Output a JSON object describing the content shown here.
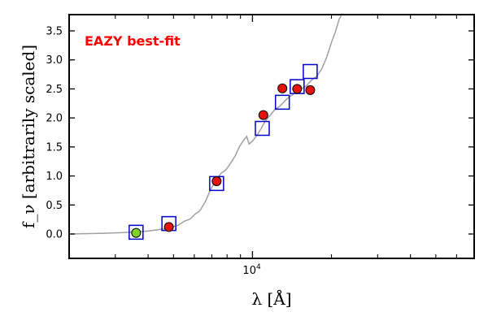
{
  "chart_data": {
    "type": "scatter",
    "title": "",
    "xlabel": "λ [Å]",
    "ylabel": "f_ν [arbitrarily scaled]",
    "x_scale": "log",
    "xlim": [
      2000,
      70000
    ],
    "ylim": [
      -0.42,
      3.78
    ],
    "y_ticks": [
      0.0,
      0.5,
      1.0,
      1.5,
      2.0,
      2.5,
      3.0,
      3.5
    ],
    "y_tick_labels": [
      "0.0",
      "0.5",
      "1.0",
      "1.5",
      "2.0",
      "2.5",
      "3.0",
      "3.5"
    ],
    "x_major_tick": {
      "value": 10000,
      "label_base": "10",
      "label_exp": "4"
    },
    "x_minor_ticks": [
      3000,
      4000,
      5000,
      6000,
      7000,
      8000,
      9000,
      20000,
      30000,
      40000,
      50000,
      60000
    ],
    "annotation": {
      "text": "EAZY best-fit",
      "color": "#ff0000"
    },
    "colors": {
      "template": "#a0a0a0",
      "model_box": "#0000cc",
      "observed_fill": "#e8120c",
      "upper_fill": "#7fd321",
      "frame": "#000000"
    },
    "series": [
      {
        "kind": "template_line",
        "points": [
          [
            2000,
            0.0
          ],
          [
            2600,
            0.01
          ],
          [
            3000,
            0.02
          ],
          [
            3400,
            0.03
          ],
          [
            3700,
            0.04
          ],
          [
            4000,
            0.05
          ],
          [
            4300,
            0.07
          ],
          [
            4600,
            0.09
          ],
          [
            4900,
            0.12
          ],
          [
            5200,
            0.15
          ],
          [
            5500,
            0.22
          ],
          [
            5800,
            0.26
          ],
          [
            6000,
            0.33
          ],
          [
            6300,
            0.4
          ],
          [
            6600,
            0.55
          ],
          [
            6900,
            0.75
          ],
          [
            7200,
            0.9
          ],
          [
            7600,
            1.05
          ],
          [
            7900,
            1.1
          ],
          [
            8200,
            1.2
          ],
          [
            8600,
            1.35
          ],
          [
            8900,
            1.5
          ],
          [
            9200,
            1.6
          ],
          [
            9500,
            1.68
          ],
          [
            9700,
            1.55
          ],
          [
            10000,
            1.6
          ],
          [
            10400,
            1.7
          ],
          [
            10800,
            1.82
          ],
          [
            11200,
            1.95
          ],
          [
            11700,
            2.05
          ],
          [
            12200,
            2.15
          ],
          [
            12700,
            2.2
          ],
          [
            13200,
            2.28
          ],
          [
            13700,
            2.35
          ],
          [
            14200,
            2.4
          ],
          [
            14700,
            2.45
          ],
          [
            15300,
            2.5
          ],
          [
            16000,
            2.55
          ],
          [
            16800,
            2.65
          ],
          [
            17600,
            2.72
          ],
          [
            18400,
            2.85
          ],
          [
            19200,
            3.05
          ],
          [
            20000,
            3.3
          ],
          [
            20700,
            3.48
          ],
          [
            21400,
            3.7
          ],
          [
            22000,
            3.8
          ]
        ]
      },
      {
        "kind": "model_boxes",
        "name": "",
        "points": [
          [
            3600,
            0.03
          ],
          [
            4800,
            0.18
          ],
          [
            7300,
            0.87
          ],
          [
            10900,
            1.82
          ],
          [
            13000,
            2.27
          ],
          [
            14800,
            2.54
          ],
          [
            16600,
            2.8
          ]
        ]
      },
      {
        "kind": "observed_points",
        "name": "",
        "points": [
          [
            4800,
            0.12
          ],
          [
            7300,
            0.91
          ],
          [
            11000,
            2.05
          ],
          [
            13000,
            2.51
          ],
          [
            14800,
            2.5
          ],
          [
            16600,
            2.48
          ]
        ]
      },
      {
        "kind": "upper_limit_points",
        "name": "",
        "points": [
          [
            3600,
            0.02
          ]
        ]
      }
    ]
  }
}
